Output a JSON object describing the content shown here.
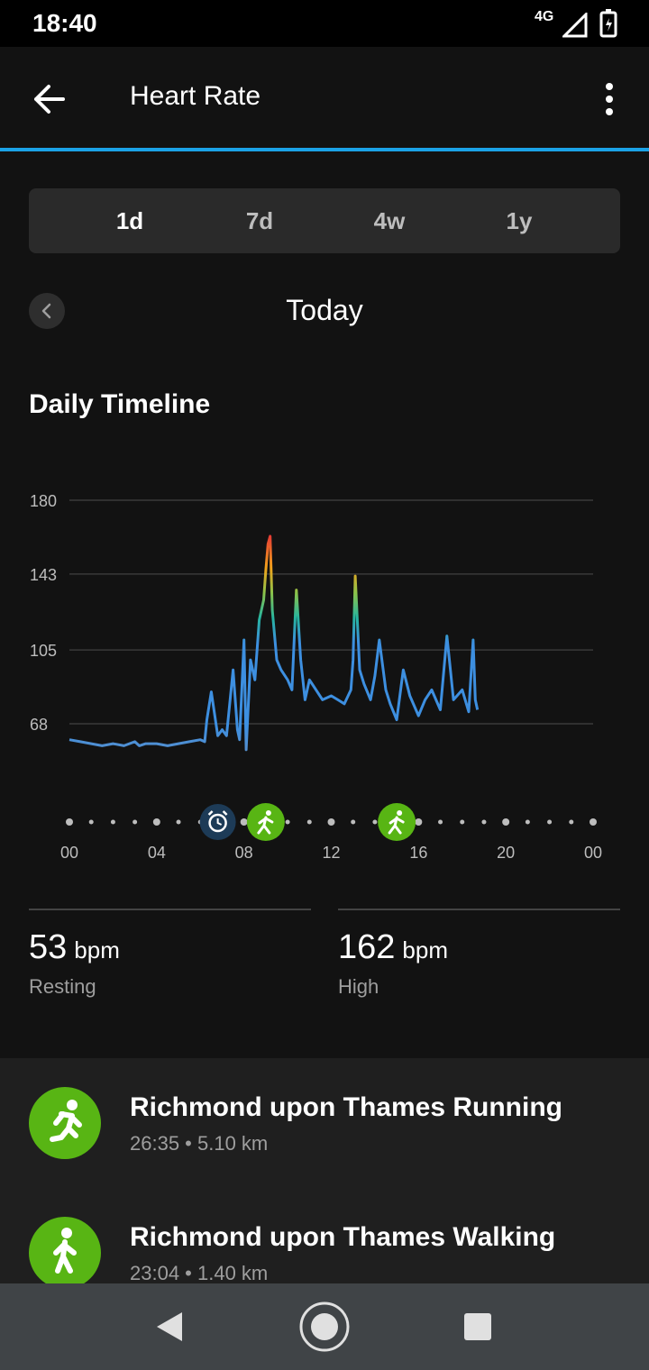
{
  "status": {
    "time": "18:40",
    "network": "4G"
  },
  "appbar": {
    "title": "Heart Rate"
  },
  "tabs": [
    {
      "label": "1d",
      "active": true
    },
    {
      "label": "7d",
      "active": false
    },
    {
      "label": "4w",
      "active": false
    },
    {
      "label": "1y",
      "active": false
    }
  ],
  "period": {
    "label": "Today"
  },
  "section": {
    "title": "Daily Timeline"
  },
  "colors": {
    "accent": "#1ba2e6",
    "line": "#3d8fe0",
    "resting": "#5b8fc9",
    "activity": "#58b514",
    "peak": "#e53935"
  },
  "chart_data": {
    "type": "line",
    "title": "",
    "xlabel": "",
    "ylabel": "",
    "x_ticks": [
      "00",
      "04",
      "08",
      "12",
      "16",
      "20",
      "00"
    ],
    "y_ticks": [
      180,
      143,
      105,
      68
    ],
    "ylim": [
      50,
      180
    ],
    "xlim": [
      0,
      24
    ],
    "grid": true,
    "series": [
      {
        "x": [
          0,
          0.5,
          1,
          1.5,
          2,
          2.5,
          3,
          3.2,
          3.5,
          4,
          4.5,
          5,
          5.5,
          6,
          6.2,
          6.3,
          6.5,
          6.8,
          7,
          7.2,
          7.5,
          7.7,
          7.8,
          8,
          8.1,
          8.3,
          8.5,
          8.7,
          8.9,
          9.0,
          9.1,
          9.2,
          9.3,
          9.5,
          9.7,
          10,
          10.2,
          10.4,
          10.6,
          10.8,
          11,
          11.3,
          11.6,
          12,
          12.3,
          12.6,
          12.9,
          13.0,
          13.1,
          13.3,
          13.5,
          13.8,
          14,
          14.2,
          14.5,
          14.7,
          15,
          15.3,
          15.6,
          16,
          16.3,
          16.6,
          17,
          17.3,
          17.6,
          18,
          18.3,
          18.5,
          18.6,
          18.7
        ],
        "y": [
          60,
          59,
          58,
          57,
          58,
          57,
          59,
          57,
          58,
          58,
          57,
          58,
          59,
          60,
          59,
          70,
          84,
          62,
          65,
          62,
          95,
          65,
          60,
          110,
          55,
          100,
          90,
          120,
          130,
          145,
          158,
          162,
          125,
          100,
          95,
          90,
          85,
          135,
          100,
          80,
          90,
          85,
          80,
          82,
          80,
          78,
          85,
          100,
          142,
          95,
          88,
          80,
          92,
          110,
          85,
          78,
          70,
          95,
          82,
          72,
          80,
          85,
          75,
          112,
          80,
          85,
          74,
          110,
          80,
          75
        ]
      }
    ],
    "markers": [
      {
        "time": 6.8,
        "icon": "alarm-clock-icon"
      },
      {
        "time": 9.0,
        "icon": "running-icon"
      },
      {
        "time": 15.0,
        "icon": "walking-icon"
      }
    ]
  },
  "stats": {
    "resting": {
      "value": "53",
      "unit": "bpm",
      "label": "Resting"
    },
    "high": {
      "value": "162",
      "unit": "bpm",
      "label": "High"
    }
  },
  "activities": [
    {
      "title": "Richmond upon Thames Running",
      "subtitle": "26:35 • 5.10 km",
      "icon": "running-icon"
    },
    {
      "title": "Richmond upon Thames Walking",
      "subtitle": "23:04 • 1.40 km",
      "icon": "walking-icon"
    }
  ]
}
